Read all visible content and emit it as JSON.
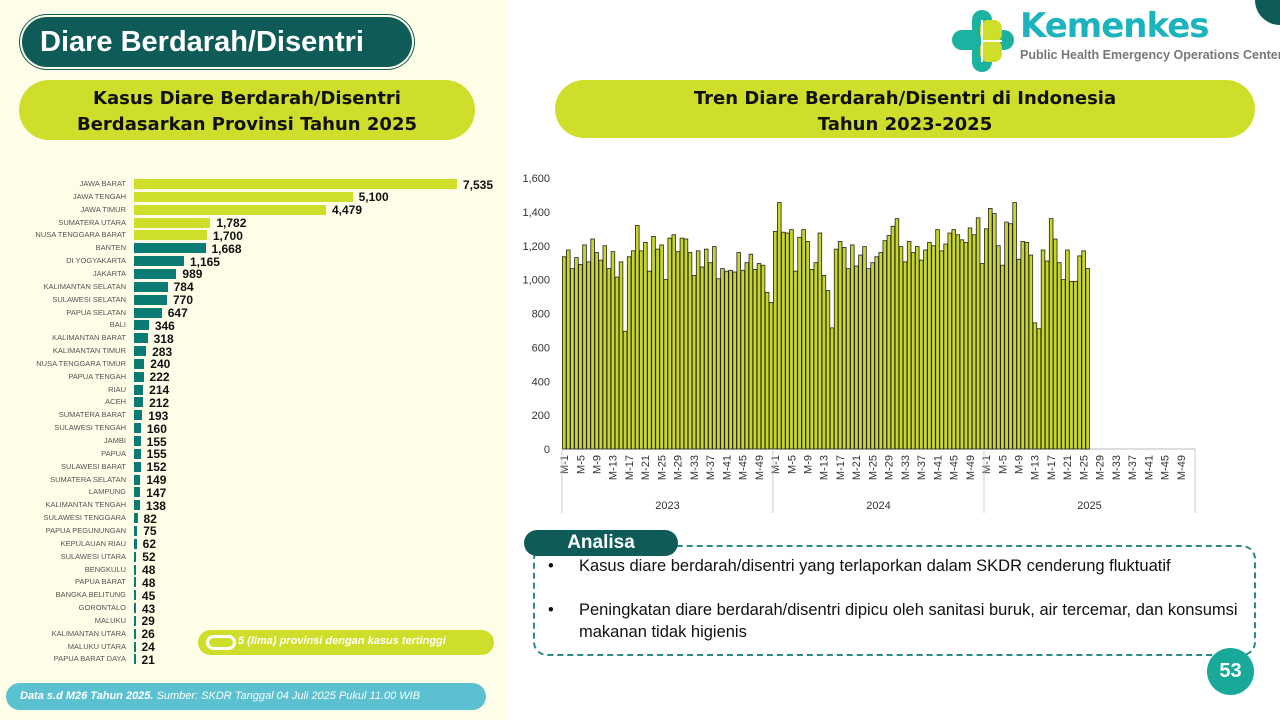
{
  "header": {
    "title": "Diare Berdarah/Disentri"
  },
  "logo": {
    "brand": "Kemenkes",
    "subtitle": "Public Health Emergency Operations Center"
  },
  "left_panel": {
    "title_line1": "Kasus Diare Berdarah/Disentri",
    "title_line2": "Berdasarkan Provinsi Tahun 2025",
    "legend": "5 (lima) provinsi dengan kasus tertinggi"
  },
  "right_panel": {
    "title_line1": "Tren Diare Berdarah/Disentri di Indonesia",
    "title_line2": "Tahun 2023-2025"
  },
  "analisa": {
    "title": "Analisa",
    "bullet_char": "•",
    "points": [
      "Kasus diare berdarah/disentri yang terlaporkan dalam SKDR cenderung fluktuatif",
      "Peningkatan diare berdarah/disentri dipicu oleh sanitasi buruk, air tercemar, dan konsumsi makanan tidak higienis"
    ]
  },
  "footer": {
    "bold": "Data s.d M26 Tahun 2025.",
    "source": " Sumber: SKDR Tanggal 04 Juli 2025 Pukul 11.00 WIB"
  },
  "page_number": "53",
  "colors": {
    "highlight": "#cfde2a",
    "normal": "#0b7b73",
    "trend_bar": "#c8d62c"
  },
  "chart_data": [
    {
      "type": "bar",
      "orientation": "horizontal",
      "title": "Kasus Diare Berdarah/Disentri Berdasarkan Provinsi Tahun 2025",
      "highlight_top": 5,
      "categories": [
        "JAWA BARAT",
        "JAWA TENGAH",
        "JAWA TIMUR",
        "SUMATERA UTARA",
        "NUSA TENGGARA BARAT",
        "BANTEN",
        "DI YOGYAKARTA",
        "JAKARTA",
        "KALIMANTAN SELATAN",
        "SULAWESI SELATAN",
        "PAPUA SELATAN",
        "BALI",
        "KALIMANTAN BARAT",
        "KALIMANTAN TIMUR",
        "NUSA TENGGARA TIMUR",
        "PAPUA TENGAH",
        "RIAU",
        "ACEH",
        "SUMATERA BARAT",
        "SULAWESI TENGAH",
        "JAMBI",
        "PAPUA",
        "SULAWESI BARAT",
        "SUMATERA SELATAN",
        "LAMPUNG",
        "KALIMANTAN TENGAH",
        "SULAWESI TENGGARA",
        "PAPUA PEGUNUNGAN",
        "KEPULAUAN RIAU",
        "SULAWESI UTARA",
        "BENGKULU",
        "PAPUA BARAT",
        "BANGKA BELITUNG",
        "GORONTALO",
        "MALUKU",
        "KALIMANTAN UTARA",
        "MALUKU UTARA",
        "PAPUA BARAT DAYA"
      ],
      "values": [
        7535,
        5100,
        4479,
        1782,
        1700,
        1668,
        1165,
        989,
        784,
        770,
        647,
        346,
        318,
        283,
        240,
        222,
        214,
        212,
        193,
        160,
        155,
        155,
        152,
        149,
        147,
        138,
        82,
        75,
        62,
        52,
        48,
        48,
        45,
        43,
        29,
        26,
        24,
        21
      ],
      "value_labels": [
        "7,535",
        "5,100",
        "4,479",
        "1,782",
        "1,700",
        "1,668",
        "1,165",
        "989",
        "784",
        "770",
        "647",
        "346",
        "318",
        "283",
        "240",
        "222",
        "214",
        "212",
        "193",
        "160",
        "155",
        "155",
        "152",
        "149",
        "147",
        "138",
        "82",
        "75",
        "62",
        "52",
        "48",
        "48",
        "45",
        "43",
        "29",
        "26",
        "24",
        "21"
      ]
    },
    {
      "type": "bar",
      "title": "Tren Diare Berdarah/Disentri di Indonesia Tahun 2023-2025",
      "ylim": [
        0,
        1600
      ],
      "yticks": [
        "0",
        "200",
        "400",
        "600",
        "800",
        "1,000",
        "1,200",
        "1,400",
        "1,600"
      ],
      "ytick_values": [
        0,
        200,
        400,
        600,
        800,
        1000,
        1200,
        1400,
        1600
      ],
      "weeks_per_year": 52,
      "week_tick_labels": [
        "M-1",
        "M-5",
        "M-9",
        "M-13",
        "M-17",
        "M-21",
        "M-25",
        "M-29",
        "M-33",
        "M-37",
        "M-41",
        "M-45",
        "M-49"
      ],
      "series": [
        {
          "name": "2023",
          "values": [
            1135,
            1175,
            1065,
            1130,
            1090,
            1205,
            1105,
            1240,
            1160,
            1115,
            1200,
            1065,
            1165,
            1015,
            1105,
            695,
            1135,
            1170,
            1320,
            1170,
            1220,
            1050,
            1255,
            1180,
            1205,
            1000,
            1245,
            1265,
            1165,
            1245,
            1240,
            1160,
            1025,
            1170,
            1075,
            1180,
            1100,
            1195,
            1005,
            1065,
            1050,
            1055,
            1045,
            1160,
            1055,
            1100,
            1150,
            1060,
            1095,
            1085,
            925,
            865
          ]
        },
        {
          "name": "2024",
          "values": [
            1285,
            1455,
            1280,
            1275,
            1295,
            1050,
            1250,
            1295,
            1225,
            1060,
            1100,
            1275,
            1025,
            935,
            715,
            1180,
            1225,
            1190,
            1065,
            1205,
            1080,
            1145,
            1195,
            1065,
            1100,
            1135,
            1160,
            1230,
            1260,
            1315,
            1360,
            1195,
            1105,
            1225,
            1160,
            1195,
            1115,
            1175,
            1220,
            1200,
            1295,
            1170,
            1210,
            1275,
            1295,
            1265,
            1235,
            1220,
            1305,
            1265,
            1365,
            1095
          ]
        },
        {
          "name": "2025",
          "values": [
            1300,
            1420,
            1390,
            1200,
            1085,
            1340,
            1330,
            1455,
            1120,
            1225,
            1220,
            1145,
            745,
            710,
            1175,
            1110,
            1360,
            1240,
            1100,
            1000,
            1175,
            990,
            990,
            1140,
            1170,
            1065
          ]
        }
      ]
    }
  ]
}
